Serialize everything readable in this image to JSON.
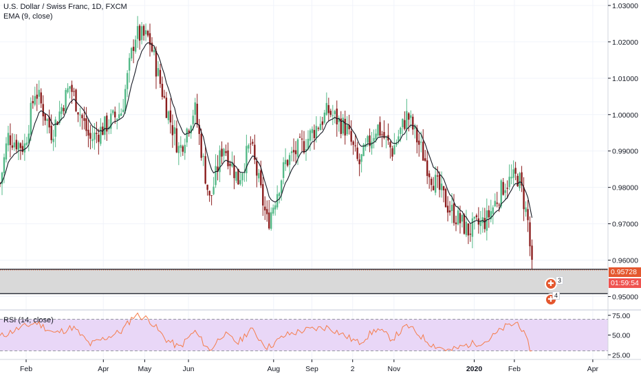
{
  "legend": {
    "symbol": "U.S. Dollar / Swiss Franc, 1D, FXCM",
    "ema": "EMA (9, close)",
    "rsi": "RSI (14, close)"
  },
  "badges": {
    "last_price": "0.95728",
    "countdown": "01:59:54"
  },
  "markers": [
    {
      "glyph": "✚",
      "count": "3"
    },
    {
      "glyph": "✚",
      "count": "4"
    }
  ],
  "colors": {
    "up": "#53b987",
    "down": "#8b1d1d",
    "ema": "#131722",
    "rsi_line": "#f57c4a",
    "rsi_band": "#e9d7f7",
    "zone_fill": "#d9d9d9",
    "price_badge": "#e4572e",
    "countdown_badge": "#ef5350",
    "grid": "#f0f3fa"
  },
  "chart_data": [
    {
      "type": "candlestick",
      "title": "U.S. Dollar / Swiss Franc, 1D, FXCM",
      "x_ticks": [
        "Feb",
        "Apr",
        "May",
        "Jun",
        "Aug",
        "Sep",
        "2",
        "Nov",
        "2020",
        "Feb",
        "Apr"
      ],
      "y_ticks": [
        "1.03000",
        "1.02000",
        "1.01000",
        "1.00000",
        "0.99000",
        "0.98000",
        "0.97000",
        "0.96000",
        "0.95000"
      ],
      "ylim": [
        0.9465,
        1.0315
      ],
      "grid": true,
      "last_price": 0.95728,
      "support_zone": [
        0.9508,
        0.9575
      ],
      "anchors": [
        {
          "x": 0,
          "y": 0.981
        },
        {
          "x": 0.013,
          "y": 0.994
        },
        {
          "x": 0.04,
          "y": 0.991
        },
        {
          "x": 0.058,
          "y": 1.007
        },
        {
          "x": 0.085,
          "y": 0.995
        },
        {
          "x": 0.115,
          "y": 1.008
        },
        {
          "x": 0.148,
          "y": 0.993
        },
        {
          "x": 0.2,
          "y": 1.001
        },
        {
          "x": 0.222,
          "y": 1.022
        },
        {
          "x": 0.245,
          "y": 1.021
        },
        {
          "x": 0.272,
          "y": 1.003
        },
        {
          "x": 0.295,
          "y": 0.99
        },
        {
          "x": 0.32,
          "y": 1.002
        },
        {
          "x": 0.345,
          "y": 0.976
        },
        {
          "x": 0.367,
          "y": 0.992
        },
        {
          "x": 0.392,
          "y": 0.982
        },
        {
          "x": 0.412,
          "y": 0.992
        },
        {
          "x": 0.44,
          "y": 0.97
        },
        {
          "x": 0.47,
          "y": 0.987
        },
        {
          "x": 0.5,
          "y": 0.992
        },
        {
          "x": 0.54,
          "y": 1.001
        },
        {
          "x": 0.57,
          "y": 0.996
        },
        {
          "x": 0.59,
          "y": 0.986
        },
        {
          "x": 0.62,
          "y": 0.997
        },
        {
          "x": 0.645,
          "y": 0.99
        },
        {
          "x": 0.67,
          "y": 1.0
        },
        {
          "x": 0.71,
          "y": 0.983
        },
        {
          "x": 0.74,
          "y": 0.974
        },
        {
          "x": 0.77,
          "y": 0.968
        },
        {
          "x": 0.8,
          "y": 0.971
        },
        {
          "x": 0.83,
          "y": 0.981
        },
        {
          "x": 0.853,
          "y": 0.983
        },
        {
          "x": 0.868,
          "y": 0.971
        },
        {
          "x": 0.875,
          "y": 0.9573
        }
      ]
    },
    {
      "type": "line",
      "name": "RSI (14, close)",
      "y_ticks": [
        "75.00",
        "50.00",
        "25.00"
      ],
      "ylim": [
        20,
        80
      ],
      "band": [
        30,
        70
      ],
      "anchors": [
        {
          "x": 0,
          "y": 48
        },
        {
          "x": 0.03,
          "y": 58
        },
        {
          "x": 0.06,
          "y": 66
        },
        {
          "x": 0.09,
          "y": 52
        },
        {
          "x": 0.12,
          "y": 60
        },
        {
          "x": 0.148,
          "y": 38
        },
        {
          "x": 0.2,
          "y": 55
        },
        {
          "x": 0.222,
          "y": 76
        },
        {
          "x": 0.245,
          "y": 70
        },
        {
          "x": 0.272,
          "y": 45
        },
        {
          "x": 0.295,
          "y": 34
        },
        {
          "x": 0.32,
          "y": 55
        },
        {
          "x": 0.345,
          "y": 30
        },
        {
          "x": 0.367,
          "y": 52
        },
        {
          "x": 0.392,
          "y": 40
        },
        {
          "x": 0.412,
          "y": 58
        },
        {
          "x": 0.44,
          "y": 34
        },
        {
          "x": 0.47,
          "y": 50
        },
        {
          "x": 0.5,
          "y": 56
        },
        {
          "x": 0.54,
          "y": 60
        },
        {
          "x": 0.57,
          "y": 48
        },
        {
          "x": 0.59,
          "y": 40
        },
        {
          "x": 0.62,
          "y": 58
        },
        {
          "x": 0.645,
          "y": 45
        },
        {
          "x": 0.67,
          "y": 62
        },
        {
          "x": 0.71,
          "y": 38
        },
        {
          "x": 0.74,
          "y": 30
        },
        {
          "x": 0.77,
          "y": 38
        },
        {
          "x": 0.8,
          "y": 42
        },
        {
          "x": 0.83,
          "y": 60
        },
        {
          "x": 0.853,
          "y": 66
        },
        {
          "x": 0.868,
          "y": 40
        },
        {
          "x": 0.875,
          "y": 28
        }
      ]
    }
  ]
}
